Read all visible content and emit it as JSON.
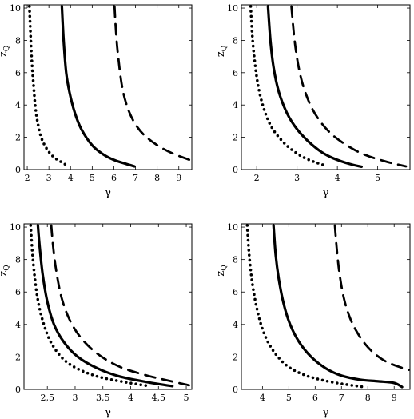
{
  "chart_data": [
    {
      "type": "line",
      "xlabel": "γ",
      "ylabel": "z",
      "ylabel_sub": "Q",
      "xlim": [
        1.85,
        9.6
      ],
      "ylim": [
        0,
        10.2
      ],
      "xticks": [
        2,
        3,
        4,
        5,
        6,
        7,
        8,
        9
      ],
      "xtick_labels": [
        "2",
        "3",
        "4",
        "5",
        "6",
        "7",
        "8",
        "9"
      ],
      "yticks": [
        0,
        2,
        4,
        6,
        8,
        10
      ],
      "ytick_labels": [
        "0",
        "2",
        "4",
        "6",
        "8",
        "10"
      ],
      "series": [
        {
          "style": "dotted",
          "points": [
            [
              2.1,
              10.1
            ],
            [
              2.15,
              8.5
            ],
            [
              2.2,
              7.0
            ],
            [
              2.28,
              5.4
            ],
            [
              2.4,
              3.6
            ],
            [
              2.6,
              2.2
            ],
            [
              2.85,
              1.4
            ],
            [
              3.2,
              0.8
            ],
            [
              3.6,
              0.45
            ],
            [
              3.85,
              0.25
            ]
          ]
        },
        {
          "style": "solid",
          "points": [
            [
              3.6,
              10.1
            ],
            [
              3.68,
              8.0
            ],
            [
              3.8,
              6.0
            ],
            [
              3.95,
              4.8
            ],
            [
              4.2,
              3.5
            ],
            [
              4.5,
              2.5
            ],
            [
              5.0,
              1.5
            ],
            [
              5.5,
              0.95
            ],
            [
              6.0,
              0.6
            ],
            [
              6.5,
              0.38
            ],
            [
              6.95,
              0.2
            ]
          ]
        },
        {
          "style": "dashed",
          "points": [
            [
              6.03,
              10.1
            ],
            [
              6.1,
              8.5
            ],
            [
              6.2,
              7.0
            ],
            [
              6.4,
              5.0
            ],
            [
              6.7,
              3.6
            ],
            [
              7.1,
              2.6
            ],
            [
              7.6,
              1.9
            ],
            [
              8.2,
              1.35
            ],
            [
              8.8,
              0.95
            ],
            [
              9.5,
              0.6
            ]
          ]
        }
      ]
    },
    {
      "type": "line",
      "xlabel": "γ",
      "ylabel": "z",
      "ylabel_sub": "Q",
      "xlim": [
        1.62,
        5.8
      ],
      "ylim": [
        0,
        10.2
      ],
      "xticks": [
        2,
        3,
        4,
        5
      ],
      "xtick_labels": [
        "2",
        "3",
        "4",
        "5"
      ],
      "yticks": [
        0,
        2,
        4,
        6,
        8,
        10
      ],
      "ytick_labels": [
        "0",
        "2",
        "4",
        "6",
        "8",
        "10"
      ],
      "series": [
        {
          "style": "dotted",
          "points": [
            [
              1.85,
              10.1
            ],
            [
              1.9,
              8.0
            ],
            [
              1.96,
              6.5
            ],
            [
              2.05,
              5.0
            ],
            [
              2.2,
              3.6
            ],
            [
              2.4,
              2.5
            ],
            [
              2.7,
              1.6
            ],
            [
              3.0,
              1.0
            ],
            [
              3.3,
              0.6
            ],
            [
              3.7,
              0.25
            ]
          ]
        },
        {
          "style": "solid",
          "points": [
            [
              2.28,
              10.1
            ],
            [
              2.34,
              8.0
            ],
            [
              2.42,
              6.3
            ],
            [
              2.55,
              4.8
            ],
            [
              2.75,
              3.5
            ],
            [
              3.0,
              2.5
            ],
            [
              3.3,
              1.7
            ],
            [
              3.6,
              1.1
            ],
            [
              3.9,
              0.7
            ],
            [
              4.3,
              0.35
            ],
            [
              4.6,
              0.18
            ]
          ]
        },
        {
          "style": "dashed",
          "points": [
            [
              2.86,
              10.1
            ],
            [
              2.93,
              8.2
            ],
            [
              3.02,
              6.6
            ],
            [
              3.15,
              5.2
            ],
            [
              3.35,
              3.9
            ],
            [
              3.6,
              2.9
            ],
            [
              3.9,
              2.1
            ],
            [
              4.3,
              1.4
            ],
            [
              4.7,
              0.9
            ],
            [
              5.2,
              0.5
            ],
            [
              5.7,
              0.2
            ]
          ]
        }
      ]
    },
    {
      "type": "line",
      "xlabel": "γ",
      "ylabel": "z",
      "ylabel_sub": "Q",
      "xlim": [
        2.08,
        5.1
      ],
      "ylim": [
        0,
        10.2
      ],
      "xticks": [
        2.5,
        3,
        3.5,
        4,
        4.5,
        5
      ],
      "xtick_labels": [
        "2,5",
        "3",
        "3,5",
        "4",
        "4,5",
        "5"
      ],
      "yticks": [
        0,
        2,
        4,
        6,
        8,
        10
      ],
      "ytick_labels": [
        "0",
        "2",
        "4",
        "6",
        "8",
        "10"
      ],
      "series": [
        {
          "style": "dotted",
          "points": [
            [
              2.2,
              10.1
            ],
            [
              2.23,
              8.5
            ],
            [
              2.27,
              7.0
            ],
            [
              2.33,
              5.5
            ],
            [
              2.42,
              4.2
            ],
            [
              2.55,
              3.0
            ],
            [
              2.75,
              2.0
            ],
            [
              3.0,
              1.35
            ],
            [
              3.4,
              0.8
            ],
            [
              3.9,
              0.45
            ],
            [
              4.3,
              0.22
            ]
          ]
        },
        {
          "style": "solid",
          "points": [
            [
              2.33,
              10.1
            ],
            [
              2.37,
              8.5
            ],
            [
              2.42,
              7.0
            ],
            [
              2.5,
              5.4
            ],
            [
              2.62,
              4.0
            ],
            [
              2.8,
              2.9
            ],
            [
              3.05,
              2.0
            ],
            [
              3.4,
              1.3
            ],
            [
              3.8,
              0.8
            ],
            [
              4.3,
              0.45
            ],
            [
              4.75,
              0.2
            ]
          ]
        },
        {
          "style": "dashed",
          "points": [
            [
              2.57,
              10.1
            ],
            [
              2.61,
              8.6
            ],
            [
              2.67,
              7.1
            ],
            [
              2.76,
              5.6
            ],
            [
              2.9,
              4.3
            ],
            [
              3.1,
              3.2
            ],
            [
              3.4,
              2.2
            ],
            [
              3.8,
              1.4
            ],
            [
              4.3,
              0.85
            ],
            [
              4.8,
              0.45
            ],
            [
              5.05,
              0.25
            ]
          ]
        }
      ]
    },
    {
      "type": "line",
      "xlabel": "γ",
      "ylabel": "z",
      "ylabel_sub": "Q",
      "xlim": [
        3.2,
        9.6
      ],
      "ylim": [
        0,
        10.2
      ],
      "xticks": [
        4,
        5,
        6,
        7,
        8,
        9
      ],
      "xtick_labels": [
        "4",
        "5",
        "6",
        "7",
        "8",
        "9"
      ],
      "yticks": [
        0,
        2,
        4,
        6,
        8,
        10
      ],
      "ytick_labels": [
        "0",
        "2",
        "4",
        "6",
        "8",
        "10"
      ],
      "series": [
        {
          "style": "dotted",
          "points": [
            [
              3.42,
              10.1
            ],
            [
              3.5,
              8.2
            ],
            [
              3.62,
              6.5
            ],
            [
              3.8,
              4.9
            ],
            [
              4.05,
              3.5
            ],
            [
              4.4,
              2.4
            ],
            [
              4.9,
              1.5
            ],
            [
              5.5,
              0.95
            ],
            [
              6.2,
              0.6
            ],
            [
              7.0,
              0.35
            ],
            [
              7.85,
              0.15
            ]
          ]
        },
        {
          "style": "solid",
          "points": [
            [
              4.42,
              10.1
            ],
            [
              4.5,
              8.3
            ],
            [
              4.62,
              6.8
            ],
            [
              4.8,
              5.3
            ],
            [
              5.05,
              4.0
            ],
            [
              5.4,
              2.9
            ],
            [
              5.85,
              2.0
            ],
            [
              6.4,
              1.3
            ],
            [
              7.0,
              0.85
            ],
            [
              7.7,
              0.6
            ],
            [
              8.4,
              0.5
            ],
            [
              9.0,
              0.4
            ],
            [
              9.3,
              0.15
            ]
          ]
        },
        {
          "style": "dashed",
          "points": [
            [
              6.75,
              10.1
            ],
            [
              6.82,
              8.7
            ],
            [
              6.92,
              7.2
            ],
            [
              7.08,
              5.7
            ],
            [
              7.3,
              4.5
            ],
            [
              7.6,
              3.5
            ],
            [
              8.0,
              2.6
            ],
            [
              8.5,
              1.9
            ],
            [
              9.0,
              1.5
            ],
            [
              9.55,
              1.2
            ]
          ]
        }
      ]
    }
  ]
}
